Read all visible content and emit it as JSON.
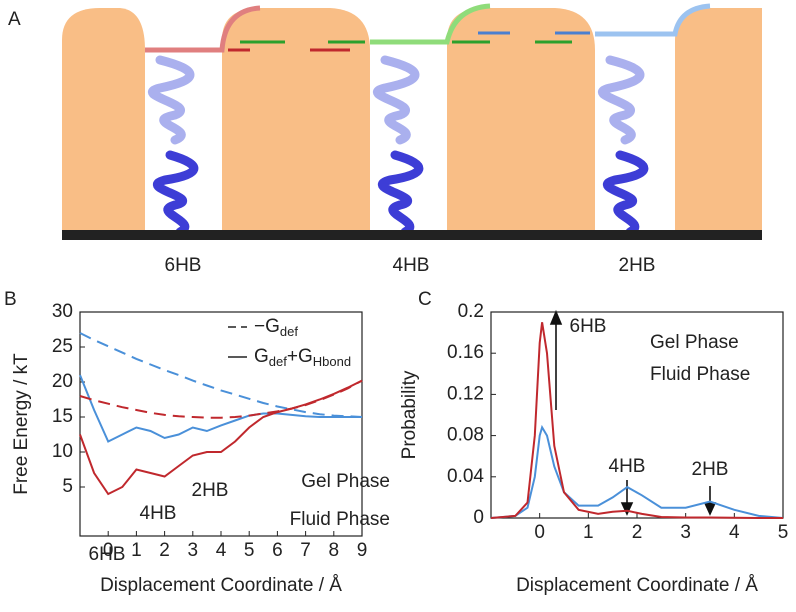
{
  "panel_labels": [
    "A",
    "B",
    "C"
  ],
  "diagram": {
    "labels": [
      "6HB",
      "4HB",
      "2HB"
    ]
  },
  "chart_data": [
    {
      "type": "line",
      "x": [
        -1,
        -0.5,
        0,
        0.5,
        1,
        1.5,
        2,
        2.5,
        3,
        3.5,
        4,
        4.5,
        5,
        5.5,
        6,
        6.5,
        7,
        7.5,
        8,
        8.5,
        9
      ],
      "xlim": [
        -1,
        9
      ],
      "xticks": [
        0,
        1,
        2,
        3,
        4,
        5,
        6,
        7,
        8,
        9
      ],
      "ylim": [
        -2,
        30
      ],
      "yticks": [
        5,
        10,
        15,
        20,
        25,
        30
      ],
      "xlabel": "Displacement Coordinate / Å",
      "ylabel": "Free Energy / kT",
      "series": [
        {
          "name": "Gel Phase",
          "color": "#4a90d9",
          "style": "solid",
          "values": [
            21,
            16,
            11.5,
            12.5,
            13.5,
            13,
            12,
            12.5,
            13.5,
            13,
            13.8,
            14.5,
            15.2,
            15.5,
            15.5,
            15.3,
            15.1,
            15,
            15,
            15,
            15
          ]
        },
        {
          "name": "Fluid Phase",
          "color": "#c0282d",
          "style": "solid",
          "values": [
            12.5,
            7,
            4,
            5,
            7.5,
            7,
            6.5,
            8,
            9.5,
            10,
            10,
            11.5,
            13.5,
            15,
            15.7,
            16.2,
            16.8,
            17.5,
            18.3,
            19.2,
            20.2
          ]
        },
        {
          "color": "#4a90d9",
          "style": "dashed",
          "values": [
            27,
            26,
            25.1,
            24.2,
            23.3,
            22.5,
            21.7,
            21,
            20.2,
            19.5,
            18.8,
            18.2,
            17.6,
            17,
            16.5,
            16.1,
            15.7,
            15.4,
            15.2,
            15.1,
            15
          ]
        },
        {
          "color": "#c0282d",
          "style": "dashed",
          "values": [
            18,
            17.4,
            16.9,
            16.4,
            16,
            15.6,
            15.3,
            15.1,
            15,
            14.9,
            14.9,
            15,
            15.2,
            15.5,
            15.8,
            16.2,
            16.7,
            17.4,
            18.2,
            19.1,
            20.2
          ]
        }
      ],
      "style_legend": [
        {
          "style": "dashed",
          "parts": [
            {
              "text": "−G"
            },
            {
              "text": "def",
              "sub": true
            }
          ]
        },
        {
          "style": "solid",
          "parts": [
            {
              "text": "G"
            },
            {
              "text": "def",
              "sub": true
            },
            {
              "text": "+G"
            },
            {
              "text": "Hbond",
              "sub": true
            }
          ]
        }
      ],
      "annotations": [
        "6HB",
        "4HB",
        "2HB"
      ]
    },
    {
      "type": "line",
      "x": [
        -1,
        -0.5,
        -0.25,
        -0.1,
        0,
        0.05,
        0.15,
        0.3,
        0.5,
        0.8,
        1.2,
        1.5,
        1.8,
        2.1,
        2.5,
        3,
        3.5,
        4,
        4.5,
        5
      ],
      "xlim": [
        -1,
        5
      ],
      "xticks": [
        0,
        1,
        2,
        3,
        4,
        5
      ],
      "ylim": [
        0,
        0.2
      ],
      "yticks": [
        0,
        0.04,
        0.08,
        0.12,
        0.16,
        0.2
      ],
      "xlabel": "Displacement Coordinate / Å",
      "ylabel": "Probability",
      "series": [
        {
          "name": "Gel Phase",
          "color": "#4a90d9",
          "style": "solid",
          "values": [
            0,
            0.002,
            0.01,
            0.04,
            0.08,
            0.088,
            0.08,
            0.05,
            0.025,
            0.012,
            0.012,
            0.02,
            0.03,
            0.022,
            0.01,
            0.01,
            0.016,
            0.008,
            0.002,
            0
          ]
        },
        {
          "name": "Fluid Phase",
          "color": "#c0282d",
          "style": "solid",
          "values": [
            0,
            0.002,
            0.015,
            0.08,
            0.17,
            0.19,
            0.16,
            0.07,
            0.025,
            0.008,
            0.004,
            0.006,
            0.007,
            0.004,
            0.001,
            0.0005,
            0.0005,
            0.0002,
            0,
            0
          ]
        }
      ],
      "annotations": [
        "6HB",
        "4HB",
        "2HB"
      ]
    }
  ]
}
